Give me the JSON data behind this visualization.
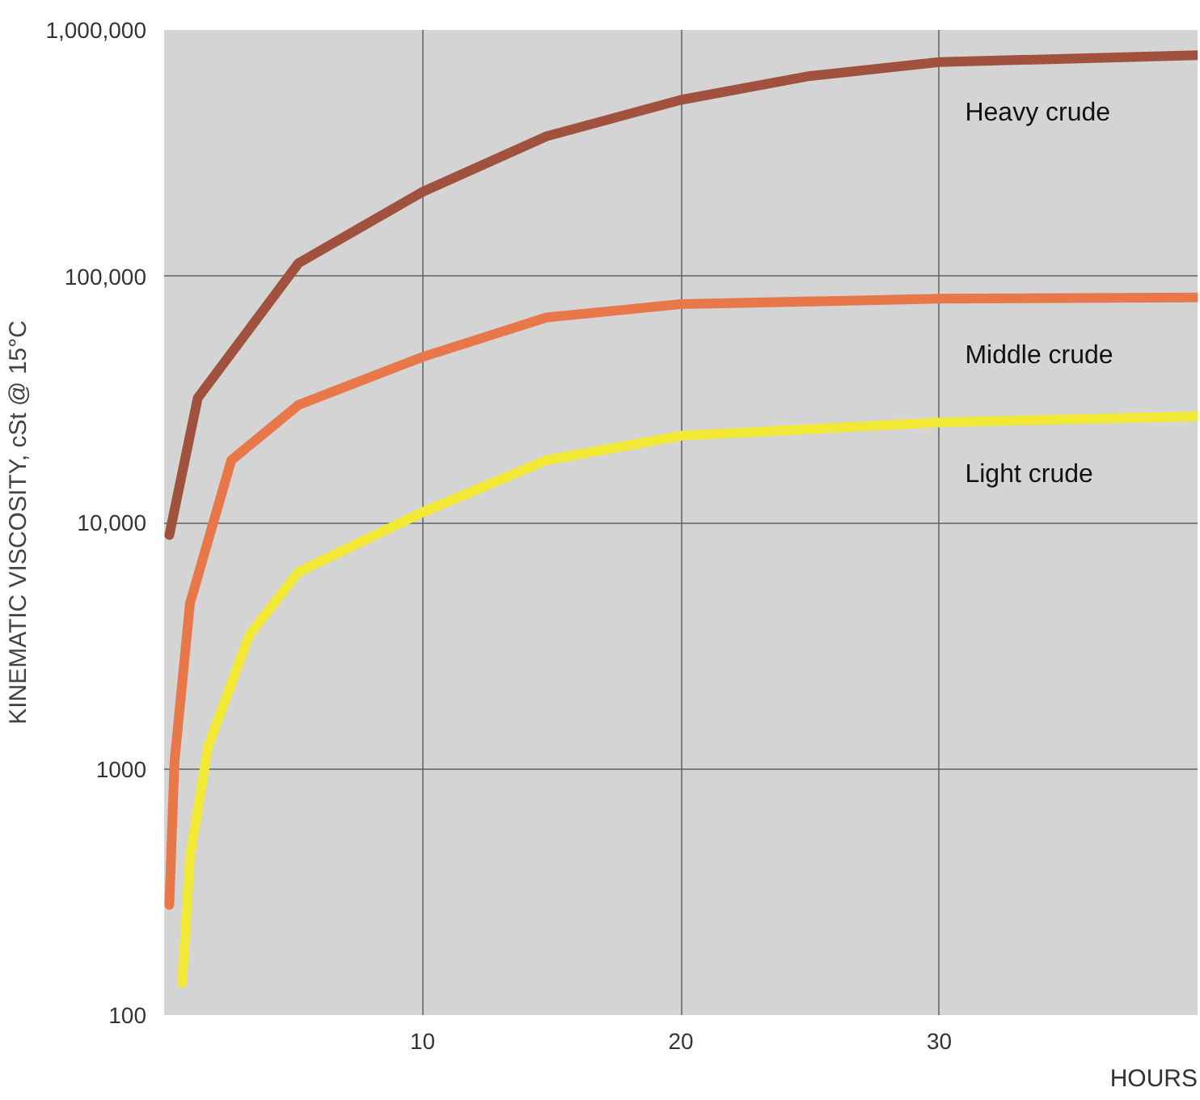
{
  "chart_data": {
    "type": "line",
    "xlabel": "HOURS",
    "ylabel": "KINEMATIC VISCOSITY, cSt @ 15°C",
    "log": "y",
    "grid": true,
    "legend": false,
    "marker": "none",
    "line_style": "solid",
    "xlim": [
      0,
      40
    ],
    "xticks": [
      10,
      20,
      30
    ],
    "ylim": [
      100,
      1000000
    ],
    "yticks": [
      100,
      1000,
      {
        "value": 10000,
        "label": "10,000"
      },
      {
        "value": 100000,
        "label": "100,000"
      },
      {
        "value": 1000000,
        "label": "1,000,000"
      }
    ],
    "series": [
      {
        "name": "Heavy crude",
        "color": "#a0523f",
        "x": [
          0.2,
          1.3,
          5.2,
          10,
          14.8,
          20,
          25,
          30,
          40
        ],
        "values": [
          8900,
          32000,
          113000,
          220000,
          370000,
          520000,
          650000,
          740000,
          790000
        ]
      },
      {
        "name": "Middle crude",
        "color": "#e8784a",
        "x": [
          0.2,
          0.4,
          1.0,
          2.6,
          5.2,
          10,
          14.8,
          20,
          30,
          40
        ],
        "values": [
          280,
          1070,
          4700,
          17900,
          30000,
          47000,
          68000,
          77000,
          81000,
          82000
        ]
      },
      {
        "name": "Light crude",
        "color": "#f2e836",
        "x": [
          0.7,
          1.0,
          1.7,
          3.3,
          5.2,
          10,
          14.8,
          20,
          30,
          40
        ],
        "values": [
          135,
          440,
          1230,
          3500,
          6300,
          11000,
          17900,
          22500,
          25500,
          27000
        ]
      }
    ]
  }
}
